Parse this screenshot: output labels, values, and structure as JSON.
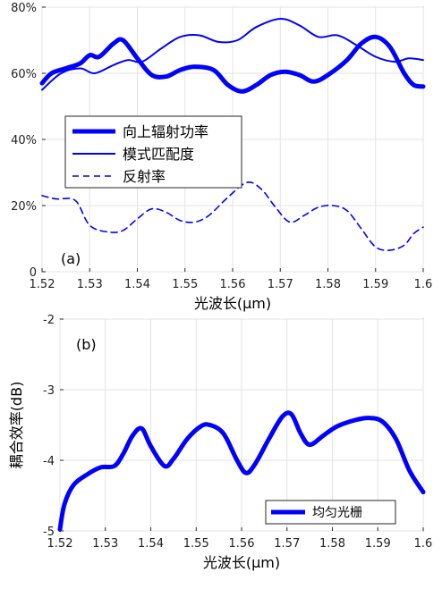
{
  "chart_data": [
    {
      "type": "line",
      "panel_label": "(a)",
      "xlabel": "光波长(μm)",
      "ylabel": "",
      "xlim": [
        1.52,
        1.6
      ],
      "ylim": [
        0,
        0.8
      ],
      "x_ticks": [
        "1.52",
        "1.53",
        "1.54",
        "1.55",
        "1.56",
        "1.57",
        "1.58",
        "1.59",
        "1.6"
      ],
      "y_ticks": [
        "0",
        "20%",
        "40%",
        "60%",
        "80%"
      ],
      "grid": true,
      "legend_position": "center-left",
      "series": [
        {
          "name": "向上辐射功率",
          "style": "thick-solid",
          "color": "#0000ff",
          "points": [
            [
              1.52,
              0.57
            ],
            [
              1.522,
              0.6
            ],
            [
              1.525,
              0.615
            ],
            [
              1.528,
              0.63
            ],
            [
              1.53,
              0.655
            ],
            [
              1.532,
              0.65
            ],
            [
              1.535,
              0.69
            ],
            [
              1.537,
              0.7
            ],
            [
              1.54,
              0.645
            ],
            [
              1.543,
              0.595
            ],
            [
              1.546,
              0.59
            ],
            [
              1.549,
              0.61
            ],
            [
              1.552,
              0.62
            ],
            [
              1.556,
              0.61
            ],
            [
              1.559,
              0.565
            ],
            [
              1.562,
              0.545
            ],
            [
              1.565,
              0.565
            ],
            [
              1.568,
              0.595
            ],
            [
              1.571,
              0.605
            ],
            [
              1.574,
              0.595
            ],
            [
              1.577,
              0.575
            ],
            [
              1.58,
              0.595
            ],
            [
              1.584,
              0.64
            ],
            [
              1.587,
              0.69
            ],
            [
              1.59,
              0.71
            ],
            [
              1.593,
              0.68
            ],
            [
              1.596,
              0.6
            ],
            [
              1.598,
              0.565
            ],
            [
              1.6,
              0.56
            ]
          ]
        },
        {
          "name": "模式匹配度",
          "style": "thin-solid",
          "color": "#0000ff",
          "points": [
            [
              1.52,
              0.55
            ],
            [
              1.524,
              0.6
            ],
            [
              1.528,
              0.615
            ],
            [
              1.531,
              0.6
            ],
            [
              1.535,
              0.625
            ],
            [
              1.538,
              0.64
            ],
            [
              1.541,
              0.635
            ],
            [
              1.545,
              0.675
            ],
            [
              1.549,
              0.71
            ],
            [
              1.553,
              0.715
            ],
            [
              1.557,
              0.695
            ],
            [
              1.561,
              0.7
            ],
            [
              1.565,
              0.74
            ],
            [
              1.57,
              0.765
            ],
            [
              1.574,
              0.745
            ],
            [
              1.578,
              0.71
            ],
            [
              1.582,
              0.715
            ],
            [
              1.586,
              0.685
            ],
            [
              1.59,
              0.65
            ],
            [
              1.594,
              0.635
            ],
            [
              1.597,
              0.645
            ],
            [
              1.6,
              0.64
            ]
          ]
        },
        {
          "name": "反射率",
          "style": "dashed",
          "color": "#0000ff",
          "points": [
            [
              1.52,
              0.23
            ],
            [
              1.523,
              0.22
            ],
            [
              1.527,
              0.215
            ],
            [
              1.53,
              0.14
            ],
            [
              1.534,
              0.12
            ],
            [
              1.537,
              0.125
            ],
            [
              1.54,
              0.16
            ],
            [
              1.543,
              0.19
            ],
            [
              1.546,
              0.18
            ],
            [
              1.549,
              0.155
            ],
            [
              1.552,
              0.15
            ],
            [
              1.555,
              0.17
            ],
            [
              1.559,
              0.225
            ],
            [
              1.563,
              0.27
            ],
            [
              1.566,
              0.25
            ],
            [
              1.569,
              0.195
            ],
            [
              1.572,
              0.15
            ],
            [
              1.575,
              0.17
            ],
            [
              1.578,
              0.195
            ],
            [
              1.581,
              0.2
            ],
            [
              1.584,
              0.185
            ],
            [
              1.587,
              0.13
            ],
            [
              1.59,
              0.075
            ],
            [
              1.593,
              0.065
            ],
            [
              1.596,
              0.08
            ],
            [
              1.598,
              0.115
            ],
            [
              1.6,
              0.135
            ]
          ]
        }
      ]
    },
    {
      "type": "line",
      "panel_label": "(b)",
      "xlabel": "光波长(μm)",
      "ylabel": "耦合效率(dB)",
      "xlim": [
        1.52,
        1.6
      ],
      "ylim": [
        -5,
        -2
      ],
      "x_ticks": [
        "1.52",
        "1.53",
        "1.54",
        "1.55",
        "1.56",
        "1.57",
        "1.58",
        "1.59",
        "1.6"
      ],
      "y_ticks": [
        "-5",
        "-4",
        "-3",
        "-2"
      ],
      "grid": true,
      "legend_position": "bottom-right",
      "series": [
        {
          "name": "均匀光栅",
          "style": "thick-solid",
          "color": "#0000ff",
          "points": [
            [
              1.52,
              -4.98
            ],
            [
              1.521,
              -4.62
            ],
            [
              1.523,
              -4.35
            ],
            [
              1.526,
              -4.2
            ],
            [
              1.529,
              -4.1
            ],
            [
              1.532,
              -4.08
            ],
            [
              1.534,
              -3.9
            ],
            [
              1.536,
              -3.65
            ],
            [
              1.538,
              -3.55
            ],
            [
              1.54,
              -3.8
            ],
            [
              1.543,
              -4.08
            ],
            [
              1.545,
              -3.98
            ],
            [
              1.548,
              -3.7
            ],
            [
              1.551,
              -3.52
            ],
            [
              1.553,
              -3.5
            ],
            [
              1.556,
              -3.62
            ],
            [
              1.559,
              -4.0
            ],
            [
              1.561,
              -4.18
            ],
            [
              1.563,
              -4.05
            ],
            [
              1.566,
              -3.7
            ],
            [
              1.569,
              -3.38
            ],
            [
              1.571,
              -3.35
            ],
            [
              1.573,
              -3.62
            ],
            [
              1.575,
              -3.78
            ],
            [
              1.578,
              -3.65
            ],
            [
              1.581,
              -3.52
            ],
            [
              1.585,
              -3.43
            ],
            [
              1.588,
              -3.4
            ],
            [
              1.591,
              -3.45
            ],
            [
              1.594,
              -3.7
            ],
            [
              1.597,
              -4.15
            ],
            [
              1.6,
              -4.45
            ]
          ]
        }
      ]
    }
  ]
}
